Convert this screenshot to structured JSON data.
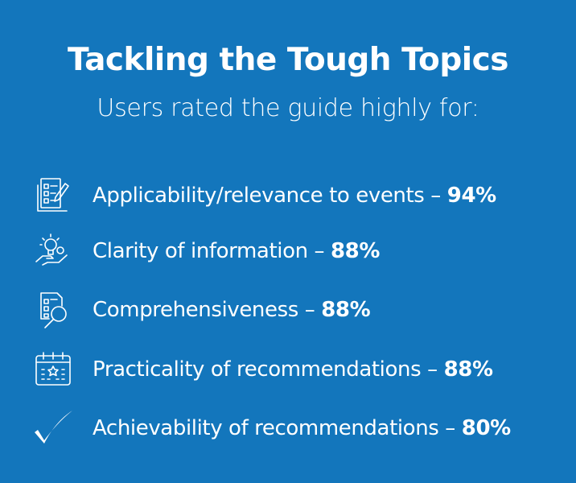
{
  "title": "Tackling the Tough Topics",
  "subtitle": "Users rated the guide highly for:",
  "items": [
    {
      "icon": "checklist-pencil-icon",
      "label": "Applicability/relevance to events – ",
      "value": "94%"
    },
    {
      "icon": "lightbulb-hand-gear-icon",
      "label": "Clarity of information – ",
      "value": "88%"
    },
    {
      "icon": "document-magnifier-icon",
      "label": "Comprehensiveness – ",
      "value": "88%"
    },
    {
      "icon": "calendar-star-icon",
      "label": "Practicality of recommendations – ",
      "value": "88%"
    },
    {
      "icon": "checkmark-icon",
      "label": "Achievability of recommendations – ",
      "value": "80%"
    }
  ],
  "colors": {
    "background": "#1376bc",
    "text": "#ffffff"
  }
}
